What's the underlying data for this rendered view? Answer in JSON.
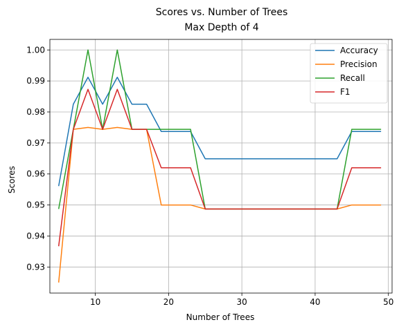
{
  "chart_data": {
    "type": "line",
    "title": "Scores vs. Number of Trees",
    "subtitle": "Max Depth of 4",
    "xlabel": "Number of Trees",
    "ylabel": "Scores",
    "xlim": [
      3.8,
      50.5
    ],
    "ylim": [
      0.9216,
      1.0034
    ],
    "xticks": [
      10,
      20,
      30,
      40,
      50
    ],
    "yticks": [
      0.93,
      0.94,
      0.95,
      0.96,
      0.97,
      0.98,
      0.99,
      1.0
    ],
    "ytick_labels": [
      "0.93",
      "0.94",
      "0.95",
      "0.96",
      "0.97",
      "0.98",
      "0.99",
      "1.00"
    ],
    "grid": true,
    "legend_position": "top-right",
    "x": [
      5,
      7,
      9,
      11,
      13,
      15,
      17,
      19,
      21,
      23,
      25,
      27,
      29,
      31,
      33,
      35,
      37,
      39,
      41,
      43,
      45,
      47,
      49
    ],
    "series": [
      {
        "name": "Accuracy",
        "color": "#1f77b4",
        "values": [
          0.9561,
          0.9825,
          0.9912,
          0.9825,
          0.9912,
          0.9825,
          0.9825,
          0.9737,
          0.9737,
          0.9737,
          0.9649,
          0.9649,
          0.9649,
          0.9649,
          0.9649,
          0.9649,
          0.9649,
          0.9649,
          0.9649,
          0.9649,
          0.9737,
          0.9737,
          0.9737
        ]
      },
      {
        "name": "Precision",
        "color": "#ff7f0e",
        "values": [
          0.925,
          0.9744,
          0.975,
          0.9744,
          0.975,
          0.9744,
          0.9744,
          0.95,
          0.95,
          0.95,
          0.9487,
          0.9487,
          0.9487,
          0.9487,
          0.9487,
          0.9487,
          0.9487,
          0.9487,
          0.9487,
          0.9487,
          0.95,
          0.95,
          0.95
        ]
      },
      {
        "name": "Recall",
        "color": "#2ca02c",
        "values": [
          0.9487,
          0.9744,
          1.0,
          0.9744,
          1.0,
          0.9744,
          0.9744,
          0.9744,
          0.9744,
          0.9744,
          0.9487,
          0.9487,
          0.9487,
          0.9487,
          0.9487,
          0.9487,
          0.9487,
          0.9487,
          0.9487,
          0.9487,
          0.9744,
          0.9744,
          0.9744
        ]
      },
      {
        "name": "F1",
        "color": "#d62728",
        "values": [
          0.9367,
          0.9744,
          0.9873,
          0.9744,
          0.9873,
          0.9744,
          0.9744,
          0.962,
          0.962,
          0.962,
          0.9487,
          0.9487,
          0.9487,
          0.9487,
          0.9487,
          0.9487,
          0.9487,
          0.9487,
          0.9487,
          0.9487,
          0.962,
          0.962,
          0.962
        ]
      }
    ]
  }
}
